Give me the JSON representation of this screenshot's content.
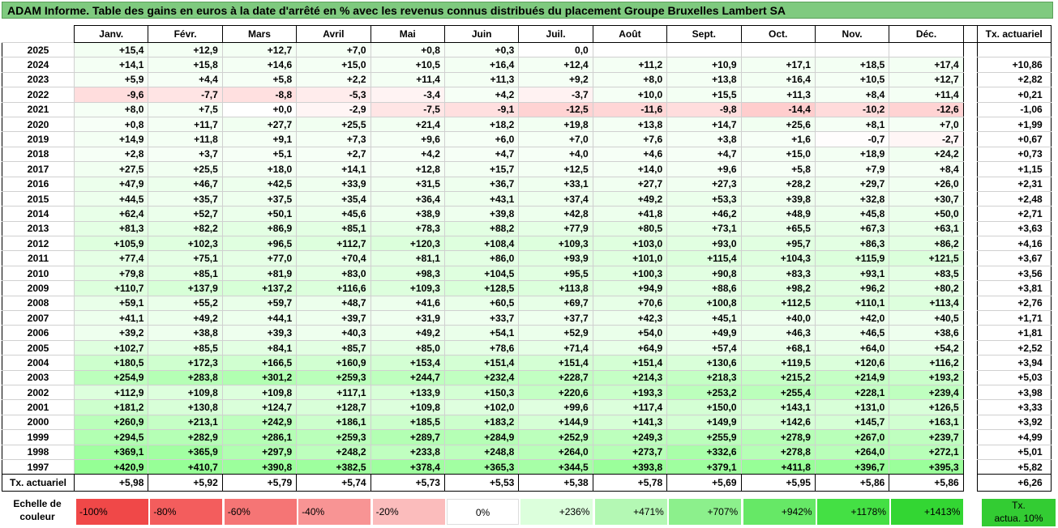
{
  "title": "ADAM Informe. Table des gains en euros à la date d'arrêté en % avec les revenus connus distribués du placement Groupe Bruxelles Lambert SA",
  "months": [
    "Janv.",
    "Févr.",
    "Mars",
    "Avril",
    "Mai",
    "Juin",
    "Juil.",
    "Août",
    "Sept.",
    "Oct.",
    "Nov.",
    "Déc."
  ],
  "ta_header": "Tx. actuariel",
  "rows": [
    {
      "year": "2025",
      "vals": [
        "+15,4",
        "+12,9",
        "+12,7",
        "+7,0",
        "+0,8",
        "+0,3",
        "0,0",
        "",
        "",
        "",
        "",
        ""
      ],
      "ta": ""
    },
    {
      "year": "2024",
      "vals": [
        "+14,1",
        "+15,8",
        "+14,6",
        "+15,0",
        "+10,5",
        "+16,4",
        "+12,4",
        "+11,2",
        "+10,9",
        "+17,1",
        "+18,5",
        "+17,4"
      ],
      "ta": "+10,86"
    },
    {
      "year": "2023",
      "vals": [
        "+5,9",
        "+4,4",
        "+5,8",
        "+2,2",
        "+11,4",
        "+11,3",
        "+9,2",
        "+8,0",
        "+13,8",
        "+16,4",
        "+10,5",
        "+12,7"
      ],
      "ta": "+2,82"
    },
    {
      "year": "2022",
      "vals": [
        "-9,6",
        "-7,7",
        "-8,8",
        "-5,3",
        "-3,4",
        "+4,2",
        "-3,7",
        "+10,0",
        "+15,5",
        "+11,3",
        "+8,4",
        "+11,4"
      ],
      "ta": "+0,21"
    },
    {
      "year": "2021",
      "vals": [
        "+8,0",
        "+7,5",
        "+0,0",
        "-2,9",
        "-7,5",
        "-9,1",
        "-12,5",
        "-11,6",
        "-9,8",
        "-14,4",
        "-10,2",
        "-12,6"
      ],
      "ta": "-1,06"
    },
    {
      "year": "2020",
      "vals": [
        "+0,8",
        "+11,7",
        "+27,7",
        "+25,5",
        "+21,4",
        "+18,2",
        "+19,8",
        "+13,8",
        "+14,7",
        "+25,6",
        "+8,1",
        "+7,0"
      ],
      "ta": "+1,99"
    },
    {
      "year": "2019",
      "vals": [
        "+14,9",
        "+11,8",
        "+9,1",
        "+7,3",
        "+9,6",
        "+6,0",
        "+7,0",
        "+7,6",
        "+3,8",
        "+1,6",
        "-0,7",
        "-2,7"
      ],
      "ta": "+0,67"
    },
    {
      "year": "2018",
      "vals": [
        "+2,8",
        "+3,7",
        "+5,1",
        "+2,7",
        "+4,2",
        "+4,7",
        "+4,0",
        "+4,6",
        "+4,7",
        "+15,0",
        "+18,9",
        "+24,2"
      ],
      "ta": "+0,73"
    },
    {
      "year": "2017",
      "vals": [
        "+27,5",
        "+25,5",
        "+18,0",
        "+14,1",
        "+12,8",
        "+15,7",
        "+12,5",
        "+14,0",
        "+9,6",
        "+5,8",
        "+7,9",
        "+8,4"
      ],
      "ta": "+1,15"
    },
    {
      "year": "2016",
      "vals": [
        "+47,9",
        "+46,7",
        "+42,5",
        "+33,9",
        "+31,5",
        "+36,7",
        "+33,1",
        "+27,7",
        "+27,3",
        "+28,2",
        "+29,7",
        "+26,0"
      ],
      "ta": "+2,31"
    },
    {
      "year": "2015",
      "vals": [
        "+44,5",
        "+35,7",
        "+37,5",
        "+35,4",
        "+36,4",
        "+43,1",
        "+37,4",
        "+49,2",
        "+53,3",
        "+39,8",
        "+32,8",
        "+30,7"
      ],
      "ta": "+2,48"
    },
    {
      "year": "2014",
      "vals": [
        "+62,4",
        "+52,7",
        "+50,1",
        "+45,6",
        "+38,9",
        "+39,8",
        "+42,8",
        "+41,8",
        "+46,2",
        "+48,9",
        "+45,8",
        "+50,0"
      ],
      "ta": "+2,71"
    },
    {
      "year": "2013",
      "vals": [
        "+81,3",
        "+82,2",
        "+86,9",
        "+85,1",
        "+78,3",
        "+88,2",
        "+77,9",
        "+80,5",
        "+73,1",
        "+65,5",
        "+67,3",
        "+63,1"
      ],
      "ta": "+3,63"
    },
    {
      "year": "2012",
      "vals": [
        "+105,9",
        "+102,3",
        "+96,5",
        "+112,7",
        "+120,3",
        "+108,4",
        "+109,3",
        "+103,0",
        "+93,0",
        "+95,7",
        "+86,3",
        "+86,2"
      ],
      "ta": "+4,16"
    },
    {
      "year": "2011",
      "vals": [
        "+77,4",
        "+75,1",
        "+77,0",
        "+70,4",
        "+81,1",
        "+86,0",
        "+93,9",
        "+101,0",
        "+115,4",
        "+104,3",
        "+115,9",
        "+121,5"
      ],
      "ta": "+3,67"
    },
    {
      "year": "2010",
      "vals": [
        "+79,8",
        "+85,1",
        "+81,9",
        "+83,0",
        "+98,3",
        "+104,5",
        "+95,5",
        "+100,3",
        "+90,8",
        "+83,3",
        "+93,1",
        "+83,5"
      ],
      "ta": "+3,56"
    },
    {
      "year": "2009",
      "vals": [
        "+110,7",
        "+137,9",
        "+137,2",
        "+116,6",
        "+109,3",
        "+128,5",
        "+113,8",
        "+94,9",
        "+88,6",
        "+98,2",
        "+96,2",
        "+80,2"
      ],
      "ta": "+3,81"
    },
    {
      "year": "2008",
      "vals": [
        "+59,1",
        "+55,2",
        "+59,7",
        "+48,7",
        "+41,6",
        "+60,5",
        "+69,7",
        "+70,6",
        "+100,8",
        "+112,5",
        "+110,1",
        "+113,4"
      ],
      "ta": "+2,76"
    },
    {
      "year": "2007",
      "vals": [
        "+41,1",
        "+49,2",
        "+44,1",
        "+39,7",
        "+31,9",
        "+33,7",
        "+37,7",
        "+42,3",
        "+45,1",
        "+40,0",
        "+42,0",
        "+40,5"
      ],
      "ta": "+1,71"
    },
    {
      "year": "2006",
      "vals": [
        "+39,2",
        "+38,8",
        "+39,3",
        "+40,3",
        "+49,2",
        "+54,1",
        "+52,9",
        "+54,0",
        "+49,9",
        "+46,3",
        "+46,5",
        "+38,6"
      ],
      "ta": "+1,81"
    },
    {
      "year": "2005",
      "vals": [
        "+102,7",
        "+85,5",
        "+84,1",
        "+85,7",
        "+85,0",
        "+78,6",
        "+71,4",
        "+64,9",
        "+57,4",
        "+68,1",
        "+64,0",
        "+54,2"
      ],
      "ta": "+2,52"
    },
    {
      "year": "2004",
      "vals": [
        "+180,5",
        "+172,3",
        "+166,5",
        "+160,9",
        "+153,4",
        "+151,4",
        "+151,4",
        "+151,4",
        "+130,6",
        "+119,5",
        "+120,6",
        "+116,2"
      ],
      "ta": "+3,94"
    },
    {
      "year": "2003",
      "vals": [
        "+254,9",
        "+283,8",
        "+301,2",
        "+259,3",
        "+244,7",
        "+232,4",
        "+228,7",
        "+214,3",
        "+218,3",
        "+215,2",
        "+214,9",
        "+193,2"
      ],
      "ta": "+5,03"
    },
    {
      "year": "2002",
      "vals": [
        "+112,9",
        "+109,8",
        "+109,8",
        "+117,1",
        "+133,9",
        "+150,3",
        "+220,6",
        "+193,3",
        "+253,2",
        "+255,4",
        "+228,1",
        "+239,4"
      ],
      "ta": "+3,98"
    },
    {
      "year": "2001",
      "vals": [
        "+181,2",
        "+130,8",
        "+124,7",
        "+128,7",
        "+109,8",
        "+102,0",
        "+99,6",
        "+117,4",
        "+150,0",
        "+143,1",
        "+131,0",
        "+126,5"
      ],
      "ta": "+3,33"
    },
    {
      "year": "2000",
      "vals": [
        "+260,9",
        "+213,1",
        "+242,9",
        "+186,1",
        "+185,5",
        "+183,2",
        "+144,9",
        "+141,3",
        "+149,9",
        "+142,6",
        "+145,7",
        "+163,1"
      ],
      "ta": "+3,92"
    },
    {
      "year": "1999",
      "vals": [
        "+294,5",
        "+282,9",
        "+286,1",
        "+259,3",
        "+289,7",
        "+284,9",
        "+252,9",
        "+249,3",
        "+255,9",
        "+278,9",
        "+267,0",
        "+239,7"
      ],
      "ta": "+4,99"
    },
    {
      "year": "1998",
      "vals": [
        "+369,1",
        "+365,9",
        "+297,9",
        "+248,2",
        "+233,8",
        "+248,8",
        "+264,0",
        "+273,7",
        "+332,6",
        "+278,8",
        "+264,0",
        "+272,1"
      ],
      "ta": "+5,01"
    },
    {
      "year": "1997",
      "vals": [
        "+420,9",
        "+410,7",
        "+390,8",
        "+382,5",
        "+378,4",
        "+365,3",
        "+344,5",
        "+393,8",
        "+379,1",
        "+411,8",
        "+396,7",
        "+395,3"
      ],
      "ta": "+5,82"
    }
  ],
  "footer": {
    "label": "Tx. actuariel",
    "vals": [
      "+5,98",
      "+5,92",
      "+5,79",
      "+5,74",
      "+5,73",
      "+5,53",
      "+5,38",
      "+5,78",
      "+5,69",
      "+5,95",
      "+5,86",
      "+5,86"
    ],
    "ta": "+6,26"
  },
  "legend": {
    "label_line1": "Echelle de",
    "label_line2": "couleur",
    "swatches": [
      {
        "text": "-100%",
        "color": "#f04848"
      },
      {
        "text": "-80%",
        "color": "#f35d5d"
      },
      {
        "text": "-60%",
        "color": "#f57575"
      },
      {
        "text": "-40%",
        "color": "#f89494"
      },
      {
        "text": "-20%",
        "color": "#fbbcbc"
      },
      {
        "text": "0%",
        "color": "#ffffff"
      },
      {
        "text": "+236%",
        "color": "#dcffdc"
      },
      {
        "text": "+471%",
        "color": "#b4f8b4"
      },
      {
        "text": "+707%",
        "color": "#8cf08c"
      },
      {
        "text": "+942%",
        "color": "#66e866"
      },
      {
        "text": "+1178%",
        "color": "#44e044"
      },
      {
        "text": "+1413%",
        "color": "#33d633"
      }
    ],
    "ta_line1": "Tx.",
    "ta_line2": "actua. 10%"
  }
}
